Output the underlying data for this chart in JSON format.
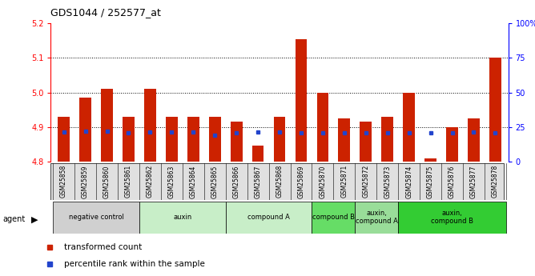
{
  "title": "GDS1044 / 252577_at",
  "samples": [
    "GSM25858",
    "GSM25859",
    "GSM25860",
    "GSM25861",
    "GSM25862",
    "GSM25863",
    "GSM25864",
    "GSM25865",
    "GSM25866",
    "GSM25867",
    "GSM25868",
    "GSM25869",
    "GSM25870",
    "GSM25871",
    "GSM25872",
    "GSM25873",
    "GSM25874",
    "GSM25875",
    "GSM25876",
    "GSM25877",
    "GSM25878"
  ],
  "bar_values": [
    4.93,
    4.985,
    5.01,
    4.93,
    5.01,
    4.93,
    4.93,
    4.93,
    4.915,
    4.845,
    4.93,
    5.155,
    5.0,
    4.925,
    4.915,
    4.93,
    5.0,
    4.81,
    4.9,
    4.925,
    5.1
  ],
  "percentile_values": [
    4.886,
    4.887,
    4.888,
    4.884,
    4.885,
    4.886,
    4.885,
    4.877,
    4.883,
    4.885,
    4.885,
    4.884,
    4.883,
    4.884,
    4.883,
    4.883,
    4.883,
    4.883,
    4.883,
    4.886,
    4.884
  ],
  "y_min": 4.8,
  "y_max": 5.2,
  "y_ticks": [
    4.8,
    4.9,
    5.0,
    5.1,
    5.2
  ],
  "y_right_ticks": [
    0,
    25,
    50,
    75,
    100
  ],
  "bar_color": "#cc2200",
  "blue_color": "#2244cc",
  "groups": [
    {
      "label": "negative control",
      "start": 0,
      "end": 4,
      "color": "#d0d0d0"
    },
    {
      "label": "auxin",
      "start": 4,
      "end": 8,
      "color": "#c8eec8"
    },
    {
      "label": "compound A",
      "start": 8,
      "end": 12,
      "color": "#c8eec8"
    },
    {
      "label": "compound B",
      "start": 12,
      "end": 14,
      "color": "#66dd66"
    },
    {
      "label": "auxin,\ncompound A",
      "start": 14,
      "end": 16,
      "color": "#99dd99"
    },
    {
      "label": "auxin,\ncompound B",
      "start": 16,
      "end": 21,
      "color": "#33cc33"
    }
  ]
}
